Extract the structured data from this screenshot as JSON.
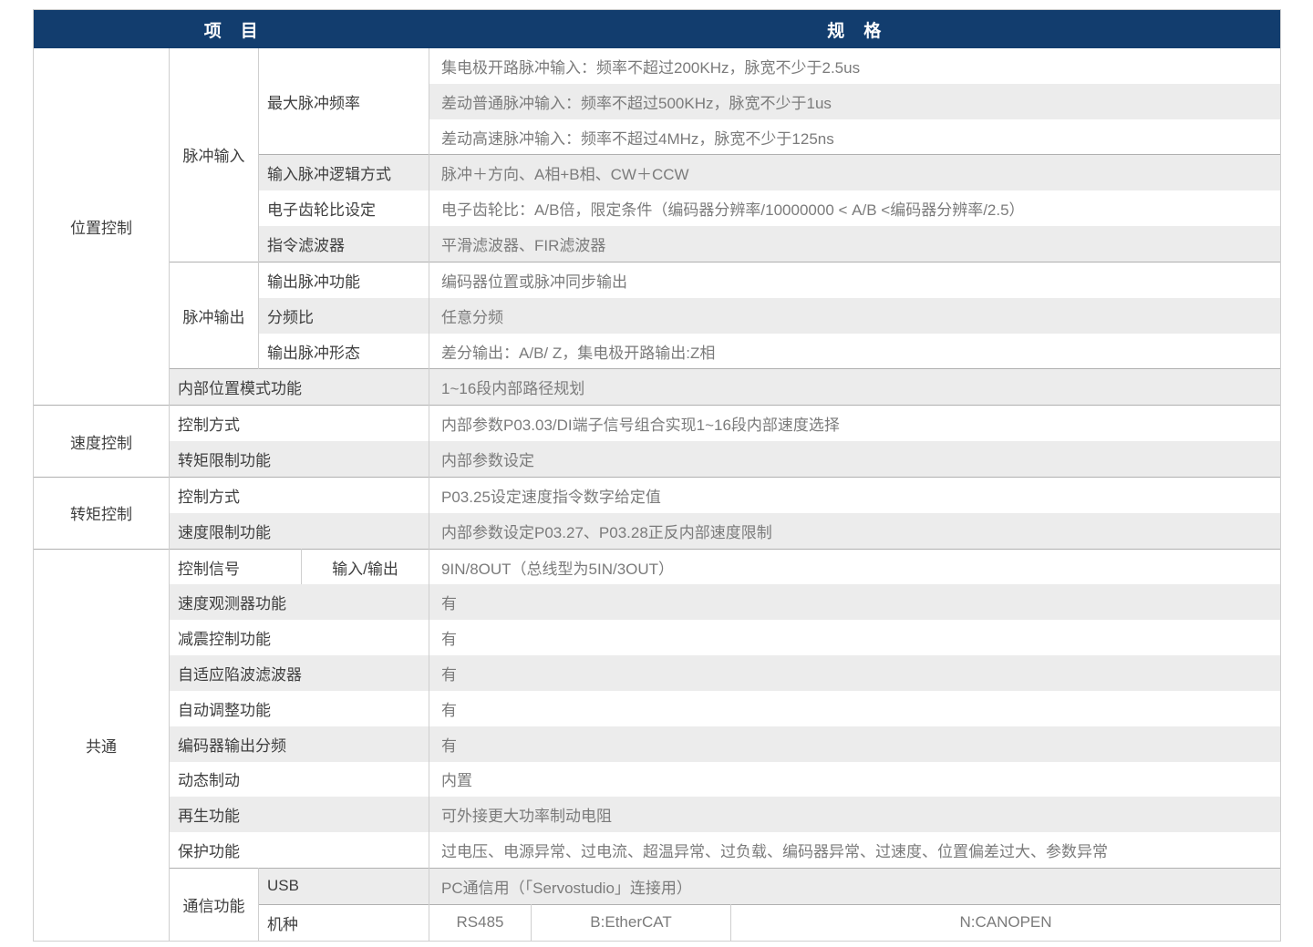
{
  "colors": {
    "header_bg": "#123d6e",
    "header_text": "#ffffff",
    "row_alt_bg": "#ececec",
    "grid_line": "#cfcfcf",
    "separator_line": "#b0b0b0",
    "label_text": "#3f3f3f",
    "value_text": "#7b7b7b"
  },
  "table": {
    "header": {
      "item": "项　目",
      "spec": "规　格"
    },
    "rows": [
      {
        "sep": false,
        "cells": [
          {
            "text": "位置控制",
            "type": "category",
            "rowspan": 10,
            "colspan": 1
          },
          {
            "text": "脉冲输入",
            "type": "subcat",
            "rowspan": 6,
            "colspan": 1
          },
          {
            "text": "最大脉冲频率",
            "type": "label",
            "rowspan": 3,
            "colspan": 2
          },
          {
            "text": "集电极开路脉冲输入：频率不超过200KHz，脉宽不少于2.5us",
            "type": "value",
            "rowspan": 1,
            "colspan": 3
          }
        ]
      },
      {
        "sep": false,
        "cells": [
          {
            "text": "差动普通脉冲输入：频率不超过500KHz，脉宽不少于1us",
            "type": "value",
            "rowspan": 1,
            "colspan": 3
          }
        ]
      },
      {
        "sep": false,
        "cells": [
          {
            "text": "差动高速脉冲输入：频率不超过4MHz，脉宽不少于125ns",
            "type": "value",
            "rowspan": 1,
            "colspan": 3
          }
        ]
      },
      {
        "sep": true,
        "cells": [
          {
            "text": "输入脉冲逻辑方式",
            "type": "label",
            "rowspan": 1,
            "colspan": 2
          },
          {
            "text": "脉冲＋方向、A相+B相、CW＋CCW",
            "type": "value",
            "rowspan": 1,
            "colspan": 3
          }
        ]
      },
      {
        "sep": false,
        "cells": [
          {
            "text": "电子齿轮比设定",
            "type": "label",
            "rowspan": 1,
            "colspan": 2
          },
          {
            "text": "电子齿轮比：A/B倍，限定条件（编码器分辨率/10000000 < A/B <编码器分辨率/2.5）",
            "type": "value",
            "rowspan": 1,
            "colspan": 3
          }
        ]
      },
      {
        "sep": false,
        "cells": [
          {
            "text": "指令滤波器",
            "type": "label",
            "rowspan": 1,
            "colspan": 2
          },
          {
            "text": "平滑滤波器、FIR滤波器",
            "type": "value",
            "rowspan": 1,
            "colspan": 3
          }
        ]
      },
      {
        "sep": true,
        "cells": [
          {
            "text": "脉冲输出",
            "type": "subcat",
            "rowspan": 3,
            "colspan": 1
          },
          {
            "text": "输出脉冲功能",
            "type": "label",
            "rowspan": 1,
            "colspan": 2
          },
          {
            "text": "编码器位置或脉冲同步输出",
            "type": "value",
            "rowspan": 1,
            "colspan": 3
          }
        ]
      },
      {
        "sep": false,
        "cells": [
          {
            "text": "分频比",
            "type": "label",
            "rowspan": 1,
            "colspan": 2
          },
          {
            "text": "任意分频",
            "type": "value",
            "rowspan": 1,
            "colspan": 3
          }
        ]
      },
      {
        "sep": false,
        "cells": [
          {
            "text": "输出脉冲形态",
            "type": "label",
            "rowspan": 1,
            "colspan": 2
          },
          {
            "text": "差分输出：A/B/ Z，集电极开路输出:Z相",
            "type": "value",
            "rowspan": 1,
            "colspan": 3
          }
        ]
      },
      {
        "sep": true,
        "cells": [
          {
            "text": "内部位置模式功能",
            "type": "label",
            "rowspan": 1,
            "colspan": 3
          },
          {
            "text": "1~16段内部路径规划",
            "type": "value",
            "rowspan": 1,
            "colspan": 3
          }
        ]
      },
      {
        "sep": true,
        "cells": [
          {
            "text": "速度控制",
            "type": "category",
            "rowspan": 2,
            "colspan": 1
          },
          {
            "text": "控制方式",
            "type": "label",
            "rowspan": 1,
            "colspan": 3
          },
          {
            "text": "内部参数P03.03/DI端子信号组合实现1~16段内部速度选择",
            "type": "value",
            "rowspan": 1,
            "colspan": 3
          }
        ]
      },
      {
        "sep": false,
        "cells": [
          {
            "text": "转矩限制功能",
            "type": "label",
            "rowspan": 1,
            "colspan": 3
          },
          {
            "text": "内部参数设定",
            "type": "value",
            "rowspan": 1,
            "colspan": 3
          }
        ]
      },
      {
        "sep": true,
        "cells": [
          {
            "text": "转矩控制",
            "type": "category",
            "rowspan": 2,
            "colspan": 1
          },
          {
            "text": "控制方式",
            "type": "label",
            "rowspan": 1,
            "colspan": 3
          },
          {
            "text": "P03.25设定速度指令数字给定值",
            "type": "value",
            "rowspan": 1,
            "colspan": 3
          }
        ]
      },
      {
        "sep": false,
        "cells": [
          {
            "text": "速度限制功能",
            "type": "label",
            "rowspan": 1,
            "colspan": 3
          },
          {
            "text": "内部参数设定P03.27、P03.28正反内部速度限制",
            "type": "value",
            "rowspan": 1,
            "colspan": 3
          }
        ]
      },
      {
        "sep": true,
        "cells": [
          {
            "text": "共通",
            "type": "category",
            "rowspan": 11,
            "colspan": 1
          },
          {
            "text": "控制信号",
            "type": "label",
            "rowspan": 1,
            "colspan": 2
          },
          {
            "text": "输入/输出",
            "type": "labelc",
            "rowspan": 1,
            "colspan": 1
          },
          {
            "text": "9IN/8OUT（总线型为5IN/3OUT）",
            "type": "value",
            "rowspan": 1,
            "colspan": 3
          }
        ]
      },
      {
        "sep": false,
        "cells": [
          {
            "text": "速度观测器功能",
            "type": "label",
            "rowspan": 1,
            "colspan": 3
          },
          {
            "text": "有",
            "type": "value",
            "rowspan": 1,
            "colspan": 3
          }
        ]
      },
      {
        "sep": false,
        "cells": [
          {
            "text": "减震控制功能",
            "type": "label",
            "rowspan": 1,
            "colspan": 3
          },
          {
            "text": "有",
            "type": "value",
            "rowspan": 1,
            "colspan": 3
          }
        ]
      },
      {
        "sep": false,
        "cells": [
          {
            "text": "自适应陷波滤波器",
            "type": "label",
            "rowspan": 1,
            "colspan": 3
          },
          {
            "text": "有",
            "type": "value",
            "rowspan": 1,
            "colspan": 3
          }
        ]
      },
      {
        "sep": false,
        "cells": [
          {
            "text": "自动调整功能",
            "type": "label",
            "rowspan": 1,
            "colspan": 3
          },
          {
            "text": "有",
            "type": "value",
            "rowspan": 1,
            "colspan": 3
          }
        ]
      },
      {
        "sep": false,
        "cells": [
          {
            "text": "编码器输出分频",
            "type": "label",
            "rowspan": 1,
            "colspan": 3
          },
          {
            "text": "有",
            "type": "value",
            "rowspan": 1,
            "colspan": 3
          }
        ]
      },
      {
        "sep": false,
        "cells": [
          {
            "text": "动态制动",
            "type": "label",
            "rowspan": 1,
            "colspan": 3
          },
          {
            "text": "内置",
            "type": "value",
            "rowspan": 1,
            "colspan": 3
          }
        ]
      },
      {
        "sep": false,
        "cells": [
          {
            "text": "再生功能",
            "type": "label",
            "rowspan": 1,
            "colspan": 3
          },
          {
            "text": "可外接更大功率制动电阻",
            "type": "value",
            "rowspan": 1,
            "colspan": 3
          }
        ]
      },
      {
        "sep": false,
        "cells": [
          {
            "text": "保护功能",
            "type": "label",
            "rowspan": 1,
            "colspan": 3
          },
          {
            "text": "过电压、电源异常、过电流、超温异常、过负载、编码器异常、过速度、位置偏差过大、参数异常",
            "type": "value",
            "rowspan": 1,
            "colspan": 3
          }
        ]
      },
      {
        "sep": true,
        "cells": [
          {
            "text": "通信功能",
            "type": "subcat",
            "rowspan": 2,
            "colspan": 1
          },
          {
            "text": "USB",
            "type": "label",
            "rowspan": 1,
            "colspan": 2
          },
          {
            "text": "PC通信用（「Servostudio」连接用）",
            "type": "value",
            "rowspan": 1,
            "colspan": 3
          }
        ]
      },
      {
        "sep": true,
        "cells": [
          {
            "text": "机种",
            "type": "label",
            "rowspan": 1,
            "colspan": 2
          },
          {
            "text": "RS485",
            "type": "valuec",
            "rowspan": 1,
            "colspan": 1
          },
          {
            "text": "B:EtherCAT",
            "type": "valuec",
            "rowspan": 1,
            "colspan": 1
          },
          {
            "text": "N:CANOPEN",
            "type": "valuec",
            "rowspan": 1,
            "colspan": 1
          }
        ]
      }
    ]
  }
}
